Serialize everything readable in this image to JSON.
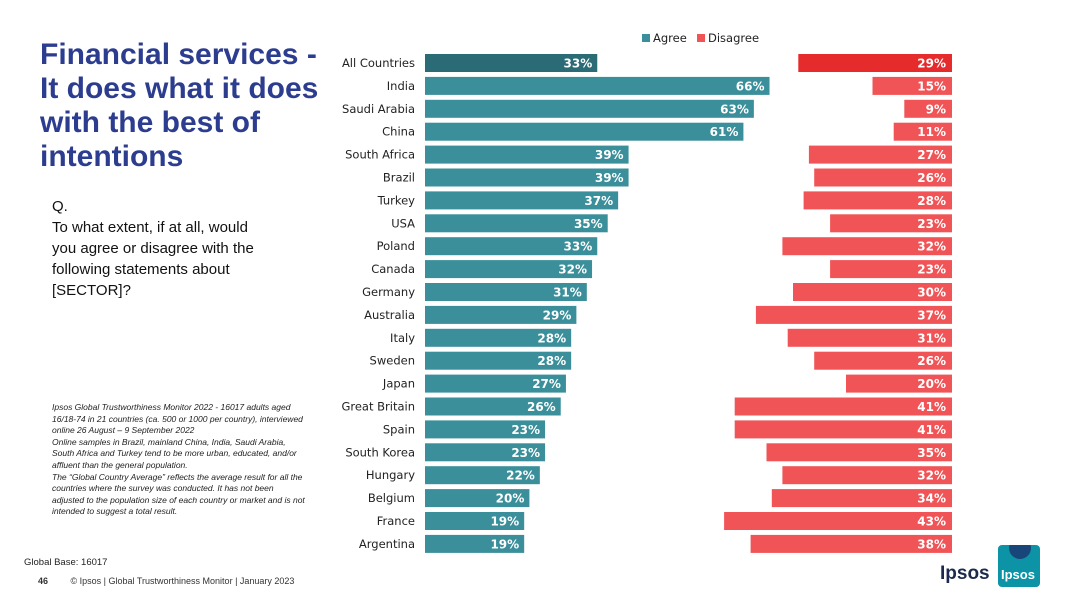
{
  "title": "Financial services - It does what it does with the best of intentions",
  "question": {
    "q": "Q.",
    "lines": [
      "To what extent, if at all, would",
      "you agree or disagree with the",
      "following statements about",
      "[SECTOR]?"
    ]
  },
  "methodology": [
    "Ipsos Global Trustworthiness Monitor 2022 - 16017 adults aged",
    "16/18-74 in 21 countries (ca. 500 or 1000 per country), interviewed",
    "online 26 August – 9 September 2022",
    "Online samples in Brazil, mainland China, India, Saudi Arabia,",
    "South Africa and Turkey tend to be more urban, educated, and/or",
    "affluent than the general population.",
    "The “Global Country Average” reflects the average result for all the",
    "countries where the survey was conducted. It has not been",
    "adjusted to the population size of each country or market and is not",
    "intended to suggest a total result."
  ],
  "global_base": "Global Base: 16017",
  "footer": {
    "page": "46",
    "text": "© Ipsos | Global Trustworthiness Monitor | January 2023"
  },
  "logo": {
    "text": "Ipsos",
    "box_text": "Ipsos"
  },
  "colors": {
    "agree": "#3a8f9b",
    "agree_highlight": "#2b6b76",
    "disagree": "#f05456",
    "disagree_highlight": "#e52b2b",
    "title": "#2c3d8f"
  },
  "chart_data": {
    "type": "bar",
    "orientation": "horizontal",
    "legend": {
      "position": "top",
      "entries": [
        "Agree",
        "Disagree"
      ]
    },
    "categories": [
      "All Countries",
      "India",
      "Saudi Arabia",
      "China",
      "South Africa",
      "Brazil",
      "Turkey",
      "USA",
      "Poland",
      "Canada",
      "Germany",
      "Australia",
      "Italy",
      "Sweden",
      "Japan",
      "Great Britain",
      "Spain",
      "South Korea",
      "Hungary",
      "Belgium",
      "France",
      "Argentina"
    ],
    "series": [
      {
        "name": "Agree",
        "values": [
          33,
          66,
          63,
          61,
          39,
          39,
          37,
          35,
          33,
          32,
          31,
          29,
          28,
          28,
          27,
          26,
          23,
          23,
          22,
          20,
          19,
          19
        ]
      },
      {
        "name": "Disagree",
        "values": [
          29,
          15,
          9,
          11,
          27,
          26,
          28,
          23,
          32,
          23,
          30,
          37,
          31,
          26,
          20,
          41,
          41,
          35,
          32,
          34,
          43,
          38
        ]
      }
    ],
    "value_suffix": "%",
    "highlight_category": "All Countries"
  }
}
